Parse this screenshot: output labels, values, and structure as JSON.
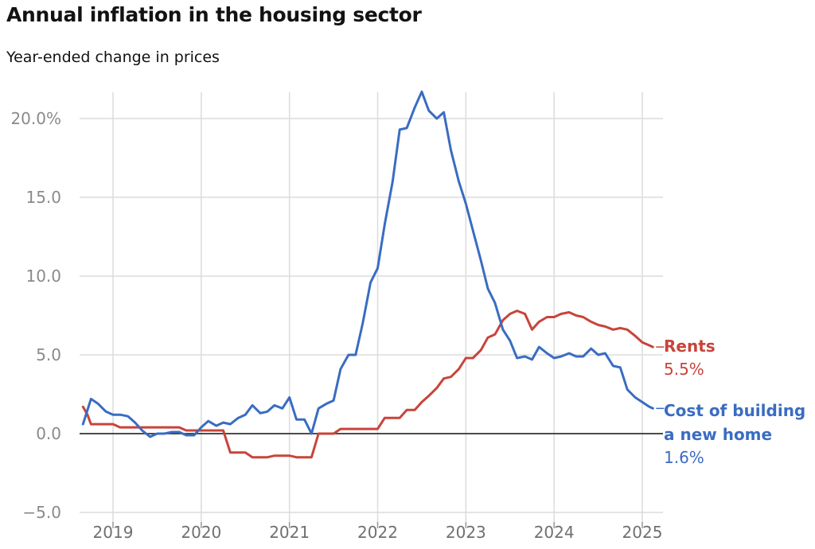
{
  "title": "Annual inflation in the housing sector",
  "subtitle": "Year-ended change in prices",
  "colors": {
    "rents": "#c8443a",
    "building": "#3a6cc2",
    "grid": "#dcdcdc",
    "zero": "#333333"
  },
  "chart_data": {
    "type": "line",
    "title": "Annual inflation in the housing sector",
    "subtitle": "Year-ended change in prices",
    "xlabel": "",
    "ylabel": "",
    "ylim": [
      -5,
      21.5
    ],
    "xlim": [
      2018.66,
      2025.12
    ],
    "y_ticks": [
      20,
      15,
      10,
      5,
      0,
      -5
    ],
    "y_tick_labels": [
      "20.0%",
      "15.0",
      "10.0",
      "5.0",
      "0.0",
      "−5.0"
    ],
    "x_ticks": [
      2019,
      2020,
      2021,
      2022,
      2023,
      2024,
      2025
    ],
    "x_tick_labels": [
      "2019",
      "2020",
      "2021",
      "2022",
      "2023",
      "2024",
      "2025"
    ],
    "series": [
      {
        "name": "Rents",
        "label_line1": "Rents",
        "end_value_label": "5.5%",
        "x": [
          2018.66,
          2018.71,
          2018.75,
          2018.83,
          2018.92,
          2019.0,
          2019.08,
          2019.17,
          2019.25,
          2019.33,
          2019.42,
          2019.5,
          2019.58,
          2019.67,
          2019.75,
          2019.83,
          2019.92,
          2020.0,
          2020.08,
          2020.17,
          2020.25,
          2020.33,
          2020.42,
          2020.5,
          2020.58,
          2020.67,
          2020.75,
          2020.83,
          2020.92,
          2021.0,
          2021.08,
          2021.17,
          2021.25,
          2021.33,
          2021.42,
          2021.5,
          2021.58,
          2021.67,
          2021.75,
          2021.83,
          2021.92,
          2022.0,
          2022.08,
          2022.17,
          2022.25,
          2022.33,
          2022.42,
          2022.5,
          2022.58,
          2022.67,
          2022.75,
          2022.83,
          2022.92,
          2023.0,
          2023.08,
          2023.17,
          2023.25,
          2023.33,
          2023.42,
          2023.5,
          2023.58,
          2023.67,
          2023.75,
          2023.83,
          2023.92,
          2024.0,
          2024.08,
          2024.17,
          2024.25,
          2024.33,
          2024.42,
          2024.5,
          2024.58,
          2024.67,
          2024.75,
          2024.83,
          2024.92,
          2025.0,
          2025.08,
          2025.12
        ],
        "values": [
          1.7,
          1.2,
          0.6,
          0.6,
          0.6,
          0.6,
          0.4,
          0.4,
          0.4,
          0.4,
          0.4,
          0.4,
          0.4,
          0.4,
          0.4,
          0.2,
          0.2,
          0.2,
          0.2,
          0.2,
          0.2,
          -1.2,
          -1.2,
          -1.2,
          -1.5,
          -1.5,
          -1.5,
          -1.4,
          -1.4,
          -1.4,
          -1.5,
          -1.5,
          -1.5,
          0.0,
          0.0,
          0.0,
          0.3,
          0.3,
          0.3,
          0.3,
          0.3,
          0.3,
          1.0,
          1.0,
          1.0,
          1.5,
          1.5,
          2.0,
          2.4,
          2.9,
          3.5,
          3.6,
          4.1,
          4.8,
          4.8,
          5.3,
          6.1,
          6.3,
          7.2,
          7.6,
          7.8,
          7.6,
          6.6,
          7.1,
          7.4,
          7.4,
          7.6,
          7.7,
          7.5,
          7.4,
          7.1,
          6.9,
          6.8,
          6.6,
          6.7,
          6.6,
          6.2,
          5.8,
          5.6,
          5.5
        ]
      },
      {
        "name": "Cost of building a new home",
        "label_line1": "Cost of building",
        "label_line2": "a new home",
        "end_value_label": "1.6%",
        "x": [
          2018.66,
          2018.75,
          2018.83,
          2018.92,
          2019.0,
          2019.08,
          2019.17,
          2019.25,
          2019.33,
          2019.42,
          2019.5,
          2019.58,
          2019.67,
          2019.75,
          2019.83,
          2019.92,
          2020.0,
          2020.08,
          2020.17,
          2020.25,
          2020.33,
          2020.42,
          2020.5,
          2020.58,
          2020.67,
          2020.75,
          2020.83,
          2020.92,
          2021.0,
          2021.08,
          2021.17,
          2021.25,
          2021.33,
          2021.42,
          2021.5,
          2021.58,
          2021.67,
          2021.75,
          2021.83,
          2021.92,
          2022.0,
          2022.08,
          2022.17,
          2022.25,
          2022.33,
          2022.42,
          2022.5,
          2022.58,
          2022.67,
          2022.75,
          2022.83,
          2022.92,
          2023.0,
          2023.08,
          2023.17,
          2023.25,
          2023.33,
          2023.42,
          2023.5,
          2023.58,
          2023.67,
          2023.75,
          2023.83,
          2023.92,
          2024.0,
          2024.08,
          2024.17,
          2024.25,
          2024.33,
          2024.42,
          2024.5,
          2024.58,
          2024.67,
          2024.75,
          2024.83,
          2024.92,
          2025.0,
          2025.08,
          2025.12
        ],
        "values": [
          0.6,
          2.2,
          1.9,
          1.4,
          1.2,
          1.2,
          1.1,
          0.7,
          0.2,
          -0.2,
          0.0,
          0.0,
          0.1,
          0.1,
          -0.1,
          -0.1,
          0.4,
          0.8,
          0.5,
          0.7,
          0.6,
          1.0,
          1.2,
          1.8,
          1.3,
          1.4,
          1.8,
          1.6,
          2.3,
          0.9,
          0.9,
          0.0,
          1.6,
          1.9,
          2.1,
          4.1,
          5.0,
          5.0,
          7.0,
          9.6,
          10.5,
          13.3,
          16.0,
          19.3,
          19.4,
          20.7,
          21.7,
          20.5,
          20.0,
          20.4,
          18.0,
          16.0,
          14.6,
          12.9,
          11.0,
          9.2,
          8.3,
          6.6,
          5.9,
          4.8,
          4.9,
          4.7,
          5.5,
          5.1,
          4.8,
          4.9,
          5.1,
          4.9,
          4.9,
          5.4,
          5.0,
          5.1,
          4.3,
          4.2,
          2.8,
          2.3,
          2.0,
          1.7,
          1.6
        ]
      }
    ]
  }
}
